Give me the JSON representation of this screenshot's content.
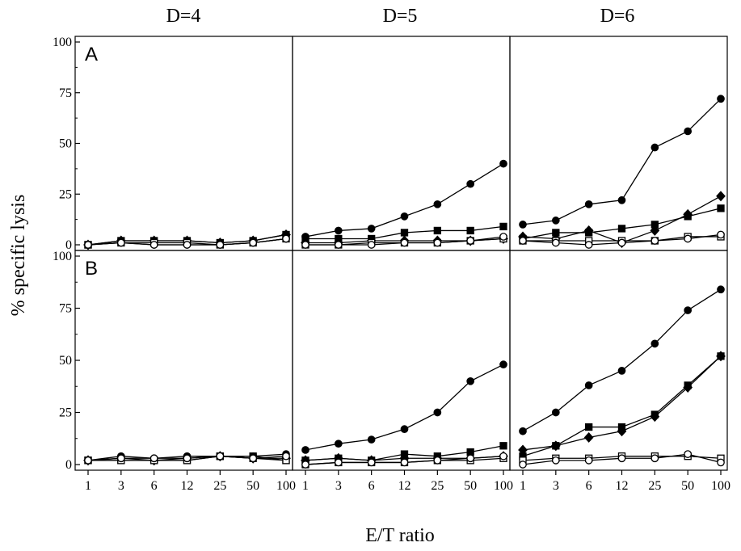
{
  "chart_data": {
    "type": "line",
    "column_titles": [
      "D=4",
      "D=5",
      "D=6"
    ],
    "row_labels": [
      "A",
      "B"
    ],
    "xlabel": "E/T ratio",
    "ylabel": "% specific lysis",
    "x_categories": [
      "1",
      "3",
      "6",
      "12",
      "25",
      "50",
      "100"
    ],
    "y_ticks": [
      0,
      25,
      50,
      75,
      100
    ],
    "ylim": [
      0,
      100
    ],
    "grid": false,
    "panels": [
      {
        "row": "A",
        "column": "D=4",
        "series": [
          {
            "marker": "filled-circle",
            "values": [
              0,
              1,
              0,
              0,
              0,
              1,
              3
            ]
          },
          {
            "marker": "filled-square",
            "values": [
              0,
              2,
              2,
              2,
              1,
              2,
              5
            ]
          },
          {
            "marker": "filled-diamond",
            "values": [
              0,
              2,
              2,
              2,
              1,
              2,
              5
            ]
          },
          {
            "marker": "open-square",
            "values": [
              0,
              1,
              1,
              1,
              0,
              1,
              3
            ]
          },
          {
            "marker": "open-circle",
            "values": [
              0,
              1,
              0,
              0,
              0,
              1,
              3
            ]
          }
        ]
      },
      {
        "row": "A",
        "column": "D=5",
        "series": [
          {
            "marker": "filled-circle",
            "values": [
              4,
              7,
              8,
              14,
              20,
              30,
              40
            ]
          },
          {
            "marker": "filled-square",
            "values": [
              3,
              3,
              3,
              6,
              7,
              7,
              9
            ]
          },
          {
            "marker": "filled-diamond",
            "values": [
              1,
              1,
              2,
              2,
              2,
              2,
              3
            ]
          },
          {
            "marker": "open-square",
            "values": [
              0,
              0,
              1,
              1,
              1,
              2,
              3
            ]
          },
          {
            "marker": "open-circle",
            "values": [
              0,
              0,
              0,
              1,
              1,
              2,
              4
            ]
          }
        ]
      },
      {
        "row": "A",
        "column": "D=6",
        "series": [
          {
            "marker": "filled-circle",
            "values": [
              10,
              12,
              20,
              22,
              48,
              56,
              72
            ]
          },
          {
            "marker": "filled-square",
            "values": [
              3,
              6,
              6,
              8,
              10,
              14,
              18
            ]
          },
          {
            "marker": "filled-diamond",
            "values": [
              4,
              3,
              7,
              1,
              7,
              15,
              24
            ]
          },
          {
            "marker": "open-square",
            "values": [
              2,
              2,
              2,
              2,
              2,
              4,
              4
            ]
          },
          {
            "marker": "open-circle",
            "values": [
              2,
              1,
              0,
              1,
              2,
              3,
              5
            ]
          }
        ]
      },
      {
        "row": "B",
        "column": "D=4",
        "series": [
          {
            "marker": "filled-circle",
            "values": [
              2,
              4,
              3,
              4,
              4,
              4,
              5
            ]
          },
          {
            "marker": "filled-square",
            "values": [
              2,
              2,
              2,
              2,
              4,
              4,
              2
            ]
          },
          {
            "marker": "filled-diamond",
            "values": [
              2,
              3,
              2,
              3,
              4,
              3,
              3
            ]
          },
          {
            "marker": "open-square",
            "values": [
              2,
              2,
              2,
              2,
              4,
              3,
              2
            ]
          },
          {
            "marker": "open-circle",
            "values": [
              2,
              3,
              3,
              3,
              4,
              3,
              4
            ]
          }
        ]
      },
      {
        "row": "B",
        "column": "D=5",
        "series": [
          {
            "marker": "filled-circle",
            "values": [
              7,
              10,
              12,
              17,
              25,
              40,
              48
            ]
          },
          {
            "marker": "filled-square",
            "values": [
              2,
              3,
              2,
              5,
              4,
              6,
              9
            ]
          },
          {
            "marker": "filled-diamond",
            "values": [
              2,
              3,
              2,
              3,
              3,
              3,
              4
            ]
          },
          {
            "marker": "open-square",
            "values": [
              0,
              1,
              1,
              1,
              2,
              2,
              3
            ]
          },
          {
            "marker": "open-circle",
            "values": [
              0,
              1,
              1,
              1,
              2,
              3,
              4
            ]
          }
        ]
      },
      {
        "row": "B",
        "column": "D=6",
        "series": [
          {
            "marker": "filled-circle",
            "values": [
              16,
              25,
              38,
              45,
              58,
              74,
              84
            ]
          },
          {
            "marker": "filled-square",
            "values": [
              4,
              9,
              18,
              18,
              24,
              38,
              52
            ]
          },
          {
            "marker": "filled-diamond",
            "values": [
              7,
              9,
              13,
              16,
              23,
              37,
              52
            ]
          },
          {
            "marker": "open-square",
            "values": [
              2,
              3,
              3,
              4,
              4,
              4,
              3
            ]
          },
          {
            "marker": "open-circle",
            "values": [
              0,
              2,
              2,
              3,
              3,
              5,
              1
            ]
          }
        ]
      }
    ]
  }
}
